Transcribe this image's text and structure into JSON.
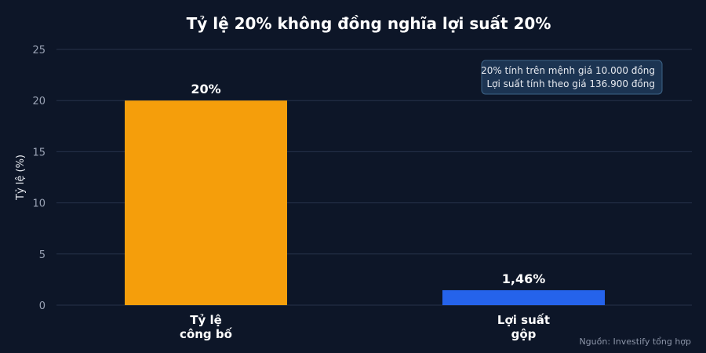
{
  "chart_data": {
    "type": "bar",
    "title": "Tỷ lệ 20% không đồng nghĩa lợi suất 20%",
    "ylabel": "Tỷ lệ (%)",
    "ylim": [
      0,
      25
    ],
    "yticks": [
      "0",
      "5",
      "10",
      "15",
      "20",
      "25"
    ],
    "grid": true,
    "categories": [
      [
        "Tỷ lệ",
        "công bố"
      ],
      [
        "Lợi suất",
        "gộp"
      ]
    ],
    "values": [
      20,
      1.46
    ],
    "value_labels": [
      "20%",
      "1,46%"
    ],
    "colors": [
      "#f59e0b",
      "#2563eb"
    ],
    "annotation": {
      "lines": [
        "20% tính trên mệnh giá 10.000 đồng",
        "Lợi suất tính theo giá 136.900 đồng"
      ]
    },
    "source": "Nguồn: Investify tổng hợp"
  }
}
